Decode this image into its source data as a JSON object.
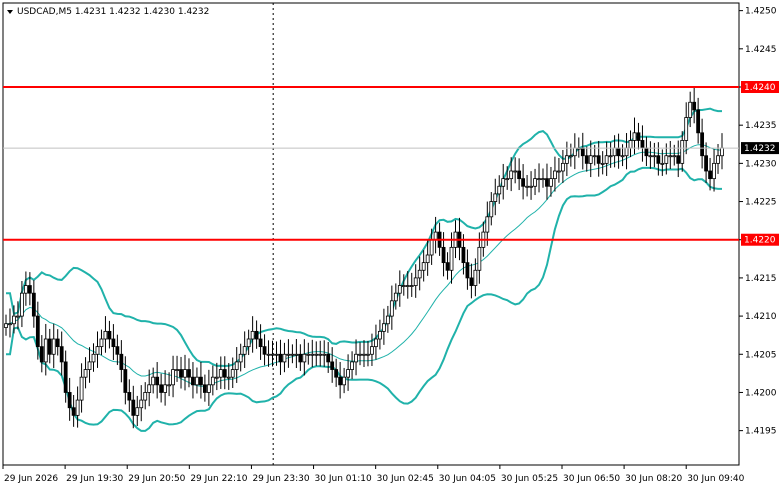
{
  "chart_data": {
    "type": "candlestick",
    "title": "USDCAD,M5  1.4231 1.4232 1.4230 1.4232",
    "ylim": [
      1.41905,
      1.4251
    ],
    "y_ticks": [
      "1.4250",
      "1.4245",
      "1.4240",
      "1.4235",
      "1.4230",
      "1.4225",
      "1.4220",
      "1.4215",
      "1.4210",
      "1.4205",
      "1.4200",
      "1.4195"
    ],
    "x_ticks": [
      "29 Jun 2026",
      "29 Jun 19:30",
      "29 Jun 20:50",
      "29 Jun 22:10",
      "29 Jun 23:30",
      "30 Jun 01:10",
      "30 Jun 02:45",
      "30 Jun 04:05",
      "30 Jun 05:25",
      "30 Jun 06:50",
      "30 Jun 08:20",
      "30 Jun 09:40"
    ],
    "price_labels": [
      {
        "label": "1.4240",
        "value": 1.424,
        "color": "#ff0000"
      },
      {
        "label": "1.4232",
        "value": 1.4232,
        "color": "#000000"
      },
      {
        "label": "1.4220",
        "value": 1.422,
        "color": "#ff0000"
      }
    ],
    "horizontal_lines": [
      1.424,
      1.422
    ],
    "current_price": 1.4232,
    "line_colors": {
      "levels": "#ff0000",
      "bands": "#20b2aa",
      "candles": "#000000",
      "current": "#c0c0c0"
    },
    "closes": [
      1.4209,
      1.4209,
      1.421,
      1.421,
      1.4213,
      1.4214,
      1.4213,
      1.421,
      1.4206,
      1.4204,
      1.4207,
      1.4205,
      1.4207,
      1.4206,
      1.4204,
      1.42,
      1.4198,
      1.4197,
      1.4199,
      1.4202,
      1.4203,
      1.4204,
      1.4205,
      1.4206,
      1.4207,
      1.4208,
      1.4207,
      1.4206,
      1.4205,
      1.4203,
      1.42,
      1.4199,
      1.4197,
      1.4198,
      1.4199,
      1.42,
      1.4201,
      1.4202,
      1.4201,
      1.42,
      1.4201,
      1.4201,
      1.4203,
      1.4203,
      1.4202,
      1.4203,
      1.4202,
      1.4201,
      1.4202,
      1.4201,
      1.42,
      1.4201,
      1.4202,
      1.4202,
      1.4203,
      1.4202,
      1.4202,
      1.4203,
      1.4204,
      1.4205,
      1.4206,
      1.4207,
      1.4208,
      1.4207,
      1.4206,
      1.4205,
      1.4205,
      1.4205,
      1.4205,
      1.4204,
      1.4205,
      1.4205,
      1.4205,
      1.4205,
      1.4204,
      1.4205,
      1.4205,
      1.4205,
      1.4205,
      1.4205,
      1.4205,
      1.4204,
      1.4203,
      1.4202,
      1.4201,
      1.4202,
      1.4203,
      1.4204,
      1.4205,
      1.4205,
      1.4205,
      1.4205,
      1.4206,
      1.4207,
      1.4208,
      1.4209,
      1.421,
      1.4212,
      1.4213,
      1.4214,
      1.4214,
      1.4214,
      1.4214,
      1.4215,
      1.4216,
      1.4217,
      1.4218,
      1.422,
      1.4221,
      1.4219,
      1.4217,
      1.4216,
      1.4219,
      1.4221,
      1.4219,
      1.4217,
      1.4215,
      1.4214,
      1.4216,
      1.4219,
      1.4221,
      1.4223,
      1.4225,
      1.4226,
      1.4227,
      1.4228,
      1.4228,
      1.4229,
      1.4229,
      1.4228,
      1.4227,
      1.4227,
      1.4227,
      1.4228,
      1.4228,
      1.4228,
      1.4227,
      1.4228,
      1.4229,
      1.4229,
      1.423,
      1.4231,
      1.4231,
      1.4232,
      1.4232,
      1.4231,
      1.423,
      1.4231,
      1.4231,
      1.423,
      1.423,
      1.4231,
      1.4231,
      1.4232,
      1.4231,
      1.4231,
      1.4232,
      1.4233,
      1.4234,
      1.4233,
      1.4232,
      1.4231,
      1.4231,
      1.4231,
      1.423,
      1.423,
      1.4231,
      1.4231,
      1.4231,
      1.423,
      1.4233,
      1.4236,
      1.4238,
      1.4237,
      1.4234,
      1.4231,
      1.4229,
      1.4228,
      1.423,
      1.4231,
      1.4232
    ]
  }
}
